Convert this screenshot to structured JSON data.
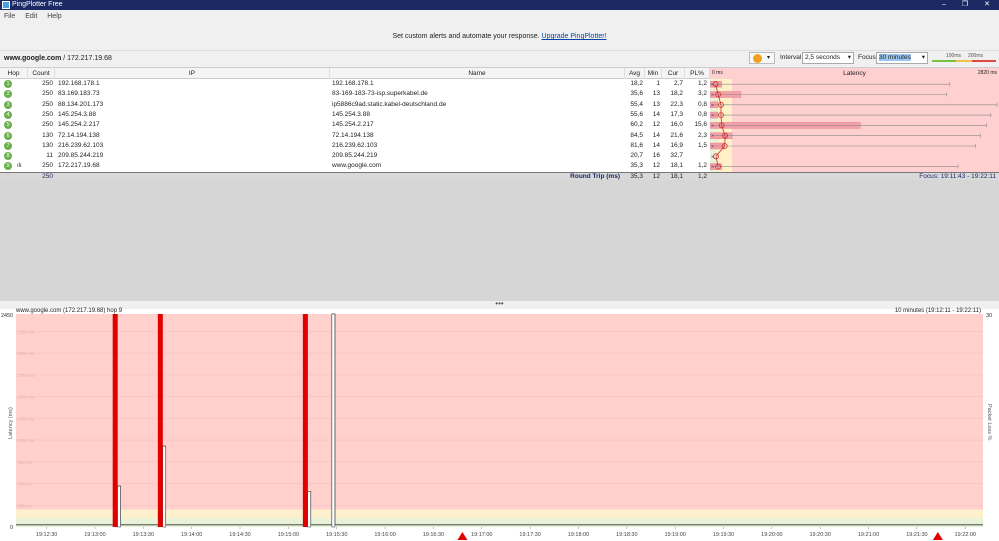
{
  "app": {
    "title": "PingPlotter Free",
    "window_controls": [
      "–",
      "❐",
      "✕"
    ]
  },
  "menu": [
    "File",
    "Edit",
    "Help"
  ],
  "banner": {
    "text": "Set custom alerts and automate your response.",
    "link": "Upgrade PingPlotter!"
  },
  "target": {
    "host": "www.google.com",
    "ip": " / 172.217.19.68"
  },
  "toolbar": {
    "pause_icon": "pause-icon",
    "interval_label": "Interval",
    "interval_value": "2,5 seconds",
    "focus_label": "Focus",
    "focus_value": "30 minutes",
    "scale_100": "100ms",
    "scale_200": "200ms",
    "colors": {
      "good": "#7cc242",
      "warn": "#f0c24a",
      "bad": "#e04848"
    }
  },
  "table": {
    "headers": {
      "hop": "Hop",
      "count": "Count",
      "ip": "IP",
      "name": "Name",
      "avg": "Avg",
      "min": "Min",
      "cur": "Cur",
      "pl": "PL%",
      "latency": "Latency",
      "lat_min": "0 ms",
      "lat_max": "2820 ms"
    },
    "rows": [
      {
        "hop": "1",
        "count": "250",
        "ip": "192.168.178.1",
        "name": "192.168.178.1",
        "avg": "18,2",
        "min": "1",
        "cur": "2,7",
        "pl": "1,2"
      },
      {
        "hop": "2",
        "count": "250",
        "ip": "83.169.183.73",
        "name": "83-169-183-73-isp.superkabel.de",
        "avg": "35,6",
        "min": "13",
        "cur": "18,2",
        "pl": "3,2"
      },
      {
        "hop": "3",
        "count": "250",
        "ip": "88.134.201.173",
        "name": "ip5886c9ad.static.kabel-deutschland.de",
        "avg": "55,4",
        "min": "13",
        "cur": "22,3",
        "pl": "0,8"
      },
      {
        "hop": "4",
        "count": "250",
        "ip": "145.254.3.88",
        "name": "145.254.3.88",
        "avg": "55,6",
        "min": "14",
        "cur": "17,3",
        "pl": "0,8"
      },
      {
        "hop": "5",
        "count": "250",
        "ip": "145.254.2.217",
        "name": "145.254.2.217",
        "avg": "60,2",
        "min": "12",
        "cur": "16,0",
        "pl": "15,6"
      },
      {
        "hop": "6",
        "count": "130",
        "ip": "72.14.194.138",
        "name": "72.14.194.138",
        "avg": "84,5",
        "min": "14",
        "cur": "21,6",
        "pl": "2,3"
      },
      {
        "hop": "7",
        "count": "130",
        "ip": "216.239.62.103",
        "name": "216.239.62.103",
        "avg": "81,6",
        "min": "14",
        "cur": "16,9",
        "pl": "1,5"
      },
      {
        "hop": "8",
        "count": "11",
        "ip": "209.85.244.219",
        "name": "209.85.244.219",
        "avg": "20,7",
        "min": "16",
        "cur": "32,7",
        "pl": ""
      },
      {
        "hop": "9",
        "count": "250",
        "ip": "172.217.19.68",
        "name": "www.google.com",
        "avg": "35,3",
        "min": "12",
        "cur": "18,1",
        "pl": "1,2",
        "graph_icon": "bar-chart-icon"
      }
    ],
    "latency_max_ms": [
      2340,
      2310,
      2800,
      2740,
      2700,
      2640,
      2590,
      null,
      2420
    ],
    "summary": {
      "count": "250",
      "label": "Round Trip (ms)",
      "avg": "35,3",
      "min": "12",
      "cur": "18,1",
      "pl": "1,2",
      "focus": "Focus: 19:11:43 - 19:22:11"
    }
  },
  "chart": {
    "title": "www.google.com (172.217.19.68) hop 9",
    "range": "10 minutes (19:12:11 - 19:22:11)",
    "y_left_label": "Latency (ms)",
    "y_right_label": "Packet Loss %"
  },
  "chart_data": {
    "type": "bar",
    "x_range": [
      "19:12:11",
      "19:22:11"
    ],
    "ylim": [
      0,
      2450
    ],
    "y_right_lim": [
      0,
      30
    ],
    "y_ticks": [
      "2450",
      "0"
    ],
    "y_right_ticks": [
      "30"
    ],
    "grid_labels": [
      "2250 ms",
      "2000 ms",
      "1750 ms",
      "1500 ms",
      "1250 ms",
      "1000 ms",
      "750 ms",
      "500 ms",
      "250 ms"
    ],
    "x_ticks": [
      "19:12:30",
      "19:13:00",
      "19:13:30",
      "19:14:00",
      "19:14:30",
      "19:15:00",
      "19:15:30",
      "19:16:00",
      "19:16:30",
      "19:17:00",
      "19:17:30",
      "19:18:00",
      "19:18:30",
      "19:19:00",
      "19:19:30",
      "19:20:00",
      "19:20:30",
      "19:21:00",
      "19:21:30",
      "19:22:00"
    ],
    "bands": [
      {
        "from": 0,
        "to": 100,
        "color": "#e8f2d8"
      },
      {
        "from": 100,
        "to": 200,
        "color": "#fdf0cc"
      },
      {
        "from": 200,
        "to": 2450,
        "color": "#ffd0cc"
      }
    ],
    "baseline_ms": 25,
    "latency_spikes": [
      {
        "time": "19:13:14",
        "ms": 470
      },
      {
        "time": "19:13:42",
        "ms": 930
      },
      {
        "time": "19:15:12",
        "ms": 410
      },
      {
        "time": "19:15:27",
        "ms": 2450
      }
    ],
    "packet_loss_events": [
      "19:13:11",
      "19:13:39",
      "19:15:09"
    ],
    "loss_markers": [
      "19:16:48",
      "19:21:43"
    ],
    "colors": {
      "loss": "#e00000",
      "line": "#333333",
      "marker": "#e00000"
    }
  }
}
